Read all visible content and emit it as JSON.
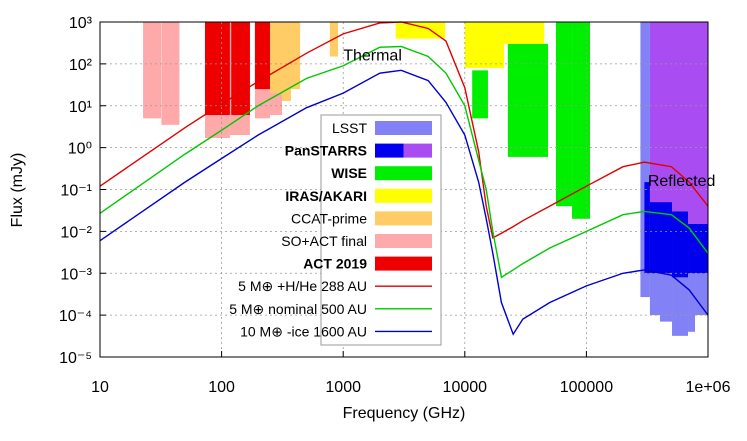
{
  "chart_data": {
    "type": "range-bar-line",
    "xlabel": "Frequency (GHz)",
    "ylabel": "Flux (mJy)",
    "xscale": "log",
    "yscale": "log",
    "grid": true,
    "legend": "center",
    "xlim": [
      10,
      1000000
    ],
    "ylim": [
      1e-05,
      1000
    ],
    "xticks": [
      10,
      100,
      1000,
      10000,
      100000,
      {
        "value": 1000000,
        "label": "1e+06"
      }
    ],
    "yticks": [
      {
        "value": 1000,
        "label": "10³"
      },
      {
        "value": 100,
        "label": "10²"
      },
      {
        "value": 10,
        "label": "10¹"
      },
      {
        "value": 1,
        "label": "10⁰"
      },
      {
        "value": 0.1,
        "label": "10⁻¹"
      },
      {
        "value": 0.01,
        "label": "10⁻²"
      },
      {
        "value": 0.001,
        "label": "10⁻³"
      },
      {
        "value": 0.0001,
        "label": "10⁻⁴"
      },
      {
        "value": 1e-05,
        "label": "10⁻⁵"
      }
    ],
    "annotations": [
      {
        "text": "Thermal",
        "x": 1000,
        "y": 120
      },
      {
        "text": "Reflected",
        "x": 320000,
        "y": 0.12
      }
    ],
    "bar_series": [
      {
        "name": "LSST",
        "bold": false,
        "colors": [
          "#8282f6"
        ],
        "bars": [
          {
            "x": [
              278000,
              333000
            ],
            "y": [
              0.00027,
              1000
            ],
            "tone": 0
          },
          {
            "x": [
              333000,
              403000
            ],
            "y": [
              0.0001,
              1000
            ],
            "tone": 0
          },
          {
            "x": [
              403000,
              506000
            ],
            "y": [
              7e-05,
              1000
            ],
            "tone": 0
          },
          {
            "x": [
              506000,
              685000
            ],
            "y": [
              3.2e-05,
              1000
            ],
            "tone": 0
          },
          {
            "x": [
              685000,
              782000
            ],
            "y": [
              4e-05,
              1000
            ],
            "tone": 0
          },
          {
            "x": [
              782000,
              1000000
            ],
            "y": [
              0.0001,
              1000
            ],
            "tone": 0
          }
        ]
      },
      {
        "name": "PanSTARRS",
        "bold": true,
        "colors": [
          "#0000ee",
          "#a94df2"
        ],
        "bars": [
          {
            "x": [
              300000,
              333000
            ],
            "y": [
              0.001,
              0.15
            ],
            "tone": 0
          },
          {
            "x": [
              333000,
              506000
            ],
            "y": [
              0.001,
              0.05
            ],
            "tone": 0
          },
          {
            "x": [
              506000,
              685000
            ],
            "y": [
              0.0008,
              0.03
            ],
            "tone": 0
          },
          {
            "x": [
              685000,
              1000000
            ],
            "y": [
              0.001,
              0.015
            ],
            "tone": 0
          },
          {
            "x": [
              333000,
              506000
            ],
            "y": [
              0.05,
              1000
            ],
            "tone": 1
          },
          {
            "x": [
              506000,
              685000
            ],
            "y": [
              0.03,
              1000
            ],
            "tone": 1
          },
          {
            "x": [
              685000,
              1000000
            ],
            "y": [
              0.015,
              1000
            ],
            "tone": 1
          }
        ]
      },
      {
        "name": "WISE",
        "bold": true,
        "colors": [
          "#00ee00"
        ],
        "bars": [
          {
            "x": [
              11500,
              15500
            ],
            "y": [
              5,
              70
            ],
            "tone": 0
          },
          {
            "x": [
              22600,
              48300
            ],
            "y": [
              0.6,
              300
            ],
            "tone": 0
          },
          {
            "x": [
              56200,
              76200
            ],
            "y": [
              0.04,
              1000
            ],
            "tone": 0
          },
          {
            "x": [
              76200,
              107000
            ],
            "y": [
              0.02,
              1000
            ],
            "tone": 0
          }
        ]
      },
      {
        "name": "IRAS/AKARI",
        "bold": true,
        "colors": [
          "#ffff00"
        ],
        "bars": [
          {
            "x": [
              2700,
              6900
            ],
            "y": [
              400,
              1000
            ],
            "tone": 0
          },
          {
            "x": [
              10000,
              21000
            ],
            "y": [
              80,
              1000
            ],
            "tone": 0
          },
          {
            "x": [
              21000,
              45000
            ],
            "y": [
              300,
              1000
            ],
            "tone": 0
          }
        ]
      },
      {
        "name": "CCAT-prime",
        "bold": false,
        "colors": [
          "#ffcc66"
        ],
        "bars": [
          {
            "x": [
              250,
              314
            ],
            "y": [
              20,
              1000
            ],
            "tone": 0
          },
          {
            "x": [
              314,
              372
            ],
            "y": [
              13,
              1000
            ],
            "tone": 0
          },
          {
            "x": [
              372,
              442
            ],
            "y": [
              25,
              1000
            ],
            "tone": 0
          },
          {
            "x": [
              777,
              906
            ],
            "y": [
              150,
              1000
            ],
            "tone": 0
          }
        ]
      },
      {
        "name": "SO+ACT final",
        "bold": false,
        "colors": [
          "#ffaaaa"
        ],
        "bars": [
          {
            "x": [
              22.6,
              31.8
            ],
            "y": [
              5,
              1000
            ],
            "tone": 0
          },
          {
            "x": [
              32,
              45
            ],
            "y": [
              3.5,
              1000
            ],
            "tone": 0
          },
          {
            "x": [
              73,
              117
            ],
            "y": [
              1.7,
              1000
            ],
            "tone": 0
          },
          {
            "x": [
              117,
              171
            ],
            "y": [
              2,
              1000
            ],
            "tone": 0
          },
          {
            "x": [
              188,
              250
            ],
            "y": [
              5,
              1000
            ],
            "tone": 0
          },
          {
            "x": [
              250,
              314
            ],
            "y": [
              6,
              20
            ],
            "tone": 0
          }
        ]
      },
      {
        "name": "ACT 2019",
        "bold": true,
        "colors": [
          "#ee0000"
        ],
        "bars": [
          {
            "x": [
              73,
              117
            ],
            "y": [
              6,
              1000
            ],
            "tone": 0
          },
          {
            "x": [
              120,
              171
            ],
            "y": [
              6,
              1000
            ],
            "tone": 0
          },
          {
            "x": [
              188,
              250
            ],
            "y": [
              25,
              1000
            ],
            "tone": 0
          }
        ]
      }
    ],
    "x": [
      10,
      20,
      50,
      100,
      200,
      500,
      1000,
      2000,
      3000,
      5000,
      7000,
      10000,
      13000,
      15000,
      17000,
      20000,
      25000,
      30000,
      50000,
      100000,
      200000,
      300000,
      500000,
      700000,
      1000000
    ],
    "series": [
      {
        "name": "5 M⊕ +H/He 288 AU",
        "color": "#e00000",
        "values": [
          0.12,
          0.48,
          3,
          11,
          38,
          180,
          520,
          950,
          1000,
          700,
          350,
          27,
          0.8,
          0.04,
          0.007,
          0.009,
          0.013,
          0.018,
          0.04,
          0.12,
          0.35,
          0.45,
          0.35,
          0.15,
          0.04
        ]
      },
      {
        "name": "5 M⊕ nominal 500 AU",
        "color": "#00c800",
        "values": [
          0.027,
          0.11,
          0.7,
          2.6,
          10,
          45,
          90,
          250,
          260,
          150,
          60,
          10,
          0.5,
          0.1,
          0.01,
          0.0008,
          0.0012,
          0.0017,
          0.004,
          0.01,
          0.025,
          0.03,
          0.025,
          0.012,
          0.003
        ]
      },
      {
        "name": "10 M⊕ -ice 1600 AU",
        "color": "#0000d0",
        "values": [
          0.006,
          0.024,
          0.15,
          0.55,
          2,
          9,
          20,
          60,
          70,
          40,
          12,
          2,
          0.15,
          0.02,
          0.003,
          0.0002,
          3.5e-05,
          8e-05,
          0.0002,
          0.0005,
          0.001,
          0.0012,
          0.0009,
          0.0004,
          0.0001
        ]
      }
    ]
  }
}
